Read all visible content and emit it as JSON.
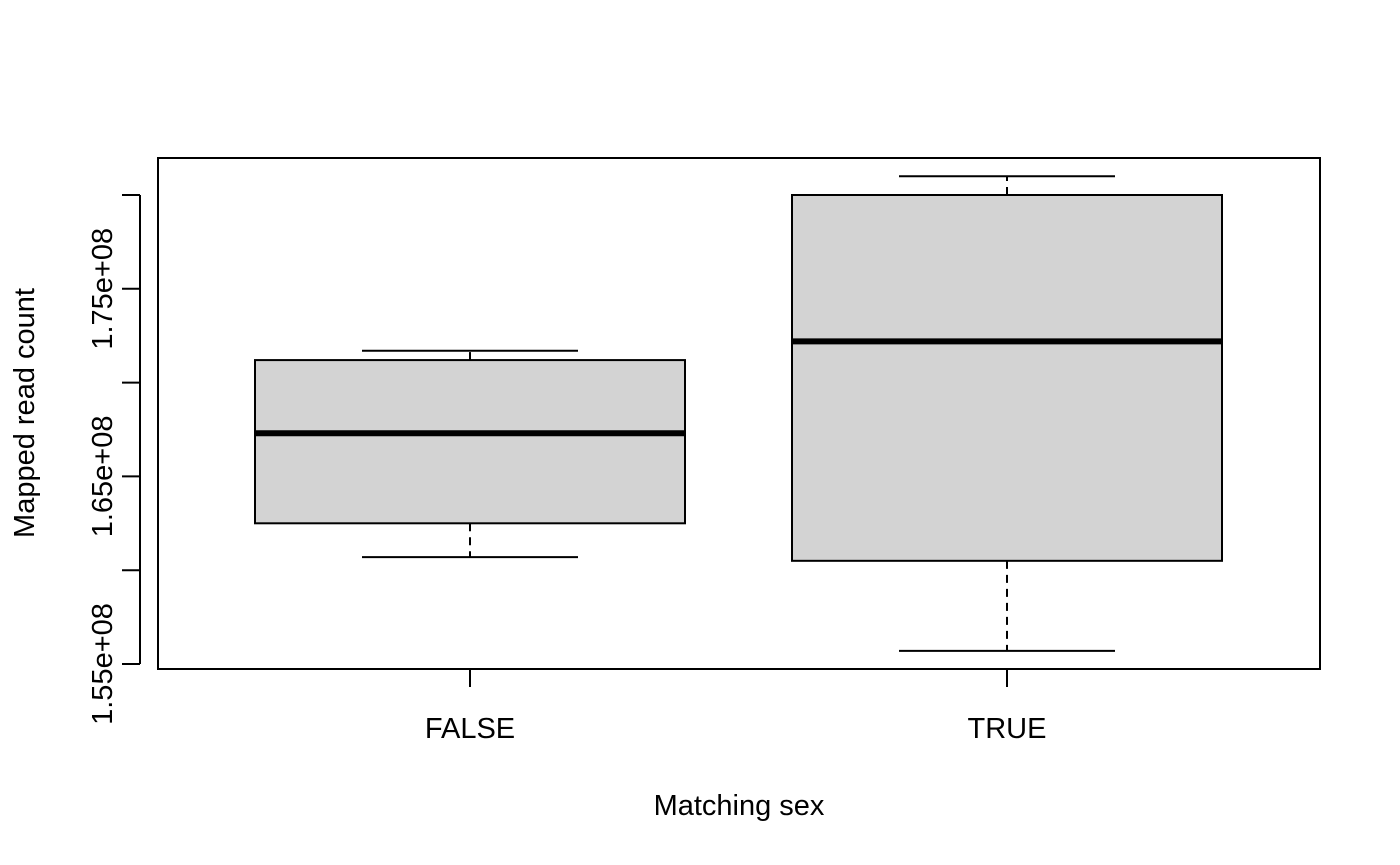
{
  "chart_data": {
    "type": "boxplot",
    "title": "",
    "xlabel": "Matching sex",
    "ylabel": "Mapped read count",
    "ylim": [
      155000000,
      181000000
    ],
    "y_ticks": [
      155000000,
      160000000,
      165000000,
      170000000,
      175000000,
      180000000
    ],
    "y_tick_labels": [
      "1.55e+08",
      "",
      "1.65e+08",
      "",
      "1.75e+08",
      ""
    ],
    "grid": false,
    "legend": "none",
    "box_fill": "#d3d3d3",
    "categories": [
      "FALSE",
      "TRUE"
    ],
    "boxes": [
      {
        "category": "FALSE",
        "whisker_low": 160700000,
        "q1": 162500000,
        "median": 167300000,
        "q3": 171200000,
        "whisker_high": 171700000
      },
      {
        "category": "TRUE",
        "whisker_low": 155700000,
        "q1": 160500000,
        "median": 172200000,
        "q3": 180000000,
        "whisker_high": 181000000
      }
    ]
  }
}
